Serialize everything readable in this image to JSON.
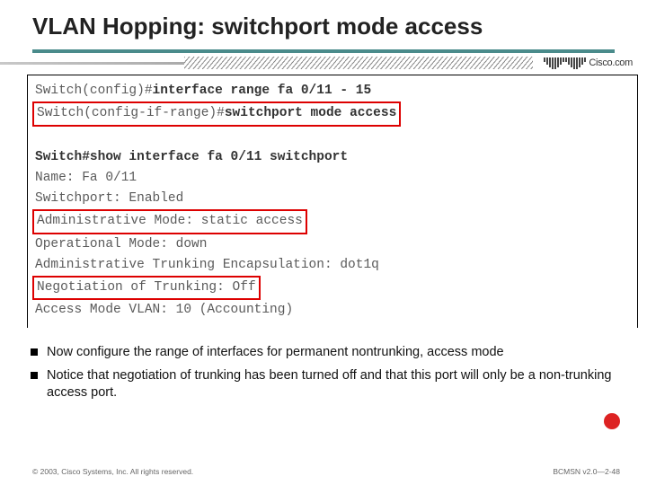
{
  "title": "VLAN Hopping: switchport mode access",
  "logo": {
    "text": "Cisco.com"
  },
  "terminal": {
    "line1_a": "Switch(config)#",
    "line1_b": "interface range fa 0/11 - 15",
    "line2_a": "Switch(config-if-range)#",
    "line2_b": "switchport mode access",
    "line3_a": "Switch#",
    "line3_b": "show interface fa 0/11 switchport",
    "line4": "Name: Fa 0/11",
    "line5": "Switchport: Enabled",
    "line6": "Administrative Mode: static access",
    "line7": "Operational Mode: down",
    "line8": "Administrative Trunking Encapsulation: dot1q",
    "line9": "Negotiation of Trunking: Off",
    "line10": "Access Mode VLAN: 10 (Accounting)"
  },
  "bullets": {
    "b1": "Now configure the range of interfaces for permanent nontrunking, access mode",
    "b2": "Notice that negotiation of trunking has been turned off and that this port will only be a non-trunking access port."
  },
  "footer": {
    "left": "© 2003, Cisco Systems, Inc. All rights reserved.",
    "right": "BCMSN v2.0—2-48"
  },
  "colors": {
    "title_underline": "#4a8b8b",
    "redbox_border": "#d00",
    "red_circle": "#d22",
    "terminal_text": "#5a5a5a"
  }
}
